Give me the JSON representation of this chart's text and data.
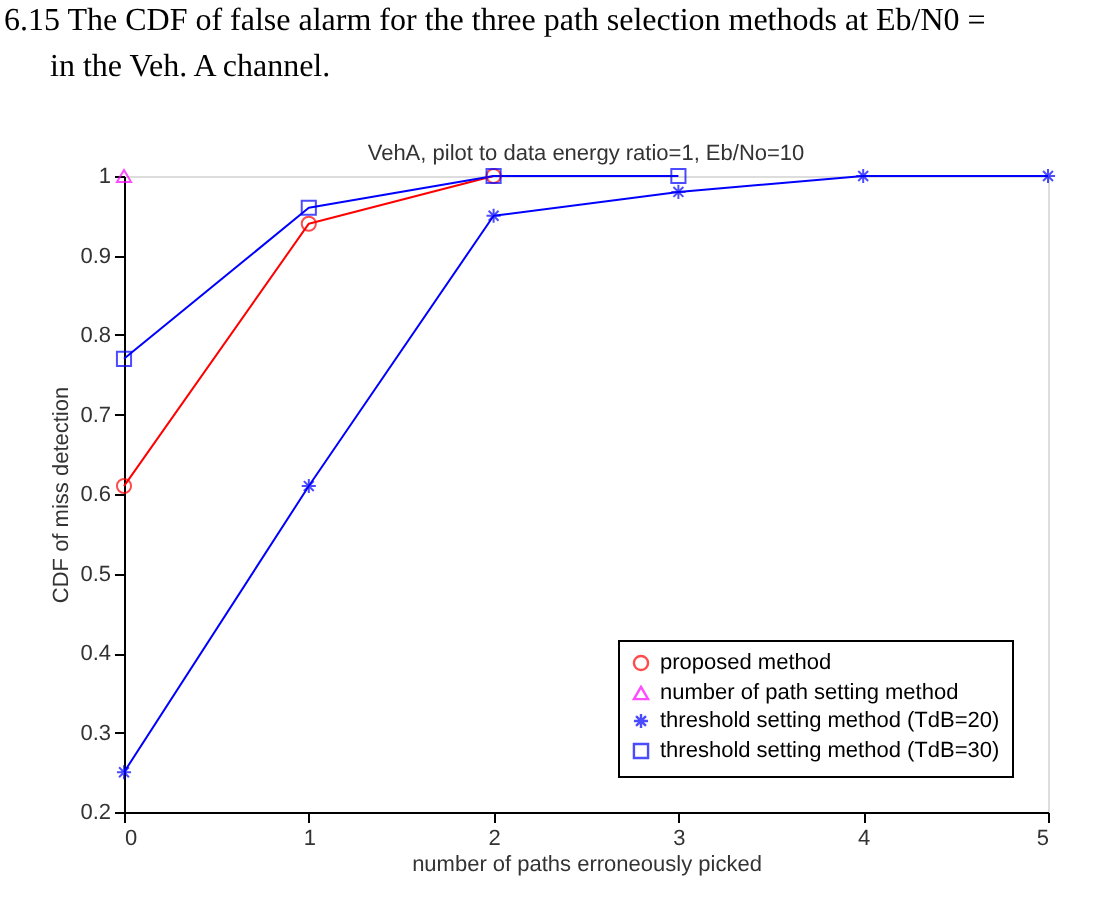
{
  "chart_data": {
    "type": "line",
    "title": "VehA, pilot to data energy ratio=1, Eb/No=10",
    "annotations": [
      "6.15 The CDF of false alarm for the three path selection methods at Eb/N0 =",
      "in the Veh. A channel."
    ],
    "xlabel": "number of paths erroneously picked",
    "ylabel": "CDF of miss detection",
    "x": [
      0,
      1,
      2,
      3,
      4,
      5
    ],
    "series": [
      {
        "name": "proposed method",
        "color": "#ff0000",
        "marker": "circle",
        "values": [
          0.61,
          0.94,
          1.0,
          null,
          null,
          null
        ]
      },
      {
        "name": "number of path setting method",
        "color": "#ff00ff",
        "marker": "triangle",
        "values": [
          1.0,
          null,
          null,
          null,
          null,
          null
        ]
      },
      {
        "name": "threshold setting method (TdB=20)",
        "color": "#0000ff",
        "marker": "cross",
        "values": [
          0.25,
          0.61,
          0.95,
          0.98,
          1.0,
          1.0
        ]
      },
      {
        "name": "threshold setting method (TdB=30)",
        "color": "#0000ff",
        "marker": "square",
        "values": [
          0.77,
          0.96,
          1.0,
          1.0,
          null,
          null
        ]
      }
    ],
    "xlim": [
      0,
      5
    ],
    "xticks": [
      0,
      1,
      2,
      3,
      4,
      5
    ],
    "ylim": [
      0.2,
      1
    ],
    "yticks": [
      0.2,
      0.3,
      0.4,
      0.5,
      0.6,
      0.7,
      0.8,
      0.9,
      1
    ],
    "grid": false,
    "legend": "bottom right",
    "line_style": "solid"
  }
}
